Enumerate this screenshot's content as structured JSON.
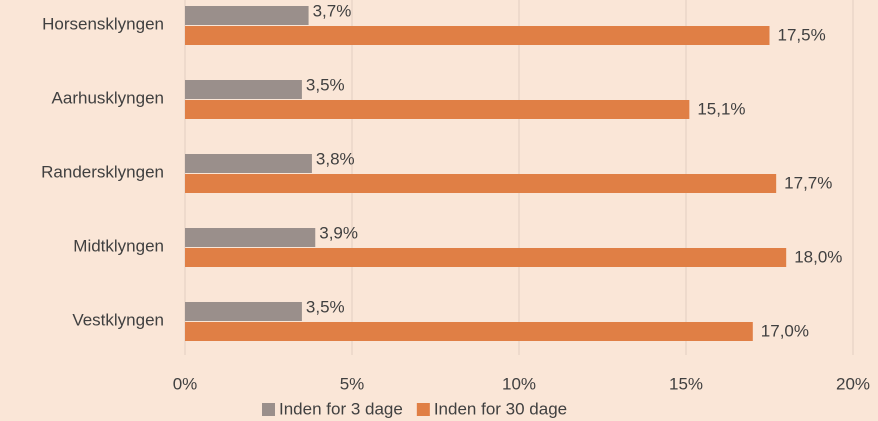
{
  "chart_data": {
    "type": "bar",
    "orientation": "horizontal",
    "categories": [
      "Horsensklyngen",
      "Aarhusklyngen",
      "Randersklyngen",
      "Midtklyngen",
      "Vestklyngen"
    ],
    "series": [
      {
        "name": "Inden for 3 dage",
        "color": "#9a8f8b",
        "values": [
          3.7,
          3.5,
          3.8,
          3.9,
          3.5
        ],
        "value_labels": [
          "3,7%",
          "3,5%",
          "3,8%",
          "3,9%",
          "3,5%"
        ]
      },
      {
        "name": "Inden for 30 dage",
        "color": "#e07f45",
        "values": [
          17.5,
          15.1,
          17.7,
          18.0,
          17.0
        ],
        "value_labels": [
          "17,5%",
          "15,1%",
          "17,7%",
          "18,0%",
          "17,0%"
        ]
      }
    ],
    "xlim": [
      0,
      20
    ],
    "xticks": [
      {
        "value": 0,
        "label": "0%"
      },
      {
        "value": 5,
        "label": "5%"
      },
      {
        "value": 10,
        "label": "10%"
      },
      {
        "value": 15,
        "label": "15%"
      },
      {
        "value": 20,
        "label": "20%"
      }
    ],
    "grid": true,
    "legend": "bottom"
  }
}
